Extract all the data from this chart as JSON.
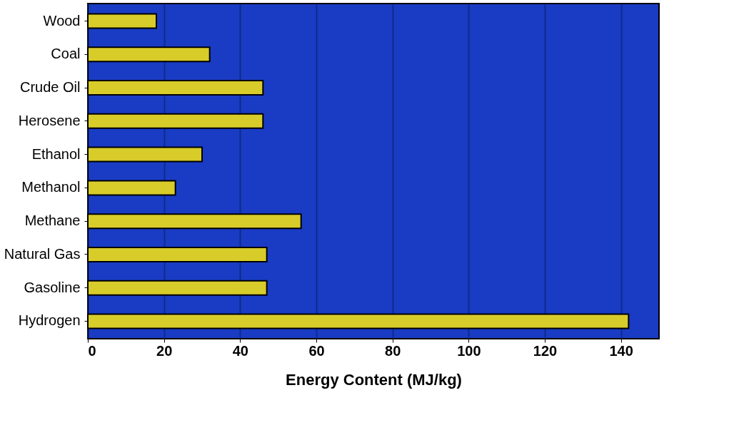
{
  "chart_data": {
    "type": "bar",
    "orientation": "horizontal",
    "xlabel": "Energy Content (MJ/kg)",
    "categories": [
      "Wood",
      "Coal",
      "Crude Oil",
      "Herosene",
      "Ethanol",
      "Methanol",
      "Methane",
      "Natural Gas",
      "Gasoline",
      "Hydrogen"
    ],
    "values": [
      18,
      32,
      46,
      46,
      30,
      23,
      56,
      47,
      47,
      142
    ],
    "color": "#d8cc2a",
    "xlim": [
      0,
      150
    ],
    "xticks": [
      0,
      20,
      40,
      60,
      80,
      100,
      120,
      140
    ],
    "grid": "x"
  }
}
